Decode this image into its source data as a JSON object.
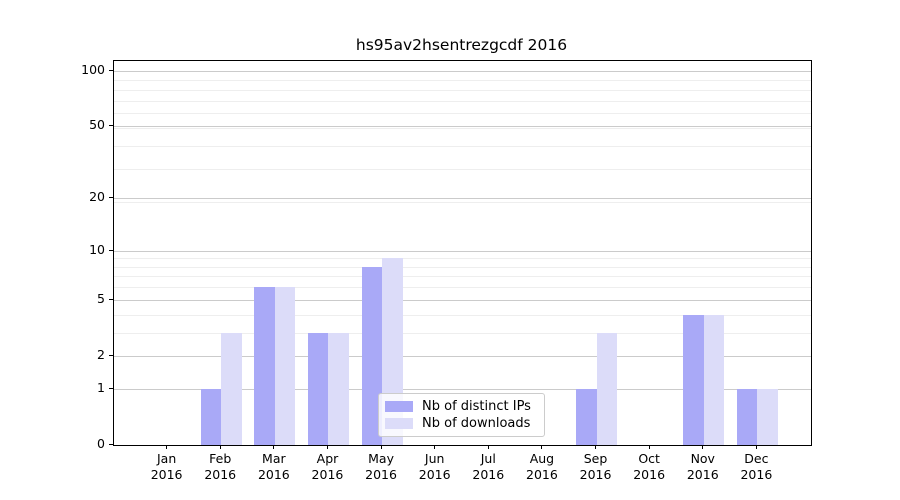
{
  "chart_data": {
    "type": "bar",
    "title": "hs95av2hsentrezgcdf 2016",
    "y_scale": "log1p",
    "ylim": [
      0,
      113
    ],
    "grid": true,
    "legend_position": "lower center",
    "categories": [
      "Jan\n2016",
      "Feb\n2016",
      "Mar\n2016",
      "Apr\n2016",
      "May\n2016",
      "Jun\n2016",
      "Jul\n2016",
      "Aug\n2016",
      "Sep\n2016",
      "Oct\n2016",
      "Nov\n2016",
      "Dec\n2016"
    ],
    "series": [
      {
        "name": "Nb of distinct IPs",
        "color": "#a9a9f7",
        "values": [
          0,
          1,
          6,
          3,
          8,
          0,
          0,
          0,
          1,
          0,
          4,
          1
        ]
      },
      {
        "name": "Nb of downloads",
        "color": "#dcdcf9",
        "values": [
          0,
          3,
          6,
          3,
          9,
          0,
          0,
          0,
          3,
          0,
          4,
          1
        ]
      }
    ],
    "y_ticks": [
      {
        "value": 0,
        "label": "0"
      },
      {
        "value": 1,
        "label": "1"
      },
      {
        "value": 2,
        "label": "2"
      },
      {
        "value": 5,
        "label": "5"
      },
      {
        "value": 10,
        "label": "10"
      },
      {
        "value": 20,
        "label": "20"
      },
      {
        "value": 50,
        "label": "50"
      },
      {
        "value": 100,
        "label": "100"
      }
    ],
    "y_minor_gridlines": [
      3,
      4,
      6,
      7,
      8,
      9,
      19,
      29,
      39,
      49,
      59,
      69,
      79,
      89
    ],
    "colors": {
      "major_grid": "#cbcbcb",
      "minor_grid": "#eeeeee",
      "axis": "#000000",
      "background": "#ffffff"
    }
  }
}
